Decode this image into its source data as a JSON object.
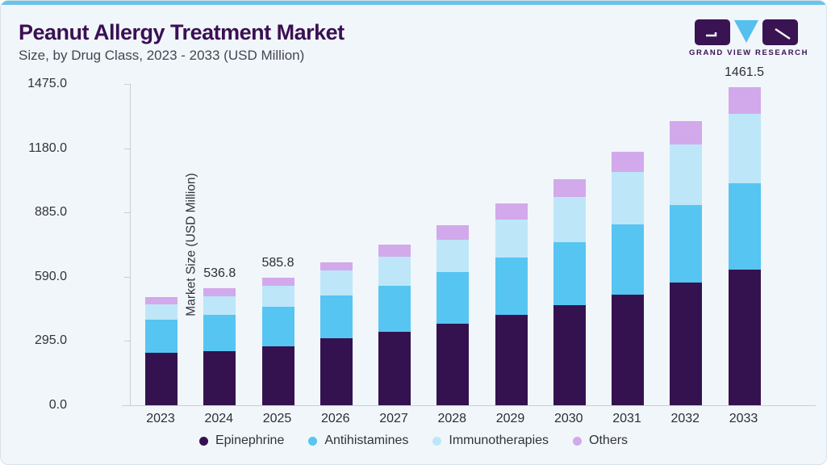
{
  "header": {
    "title": "Peanut Allergy Treatment Market",
    "subtitle": "Size, by Drug Class, 2023 - 2033 (USD Million)"
  },
  "logo": {
    "brand": "GRAND VIEW RESEARCH",
    "icon": "gvr-logo-icon",
    "colors": {
      "rect": "#3a1353",
      "triangle": "#55c0ed"
    }
  },
  "colors": {
    "accent_bar": "#68c3ea",
    "card_background": "#f1f6fa",
    "card_border": "#d8e2ea",
    "title_text": "#3a1053",
    "subtitle_text": "#454553",
    "axis_text": "#32323d",
    "axis_line": "#c9ced6",
    "value_label_text": "#2d2d38"
  },
  "chart_data": {
    "type": "bar",
    "stacked": true,
    "title": "Peanut Allergy Treatment Market Size, by Drug Class, 2023 - 2033 (USD Million)",
    "xlabel": "",
    "ylabel": "Market Size (USD Million)",
    "ylim": [
      0,
      1475
    ],
    "yticks": [
      0,
      295,
      590,
      885,
      1180,
      1475
    ],
    "ytick_labels": [
      "0.0",
      "295.0",
      "590.0",
      "885.0",
      "1180.0",
      "1475.0"
    ],
    "grid": false,
    "legend_position": "bottom",
    "categories": [
      "2023",
      "2024",
      "2025",
      "2026",
      "2027",
      "2028",
      "2029",
      "2030",
      "2031",
      "2032",
      "2033"
    ],
    "series": [
      {
        "name": "Epinephrine",
        "color": "#341250",
        "values": [
          240.5,
          249.7,
          271.8,
          307.3,
          337.2,
          373.9,
          415.5,
          460.7,
          509.5,
          564.7,
          624.1
        ]
      },
      {
        "name": "Antihistamines",
        "color": "#56c5f2",
        "values": [
          152.1,
          165.3,
          178.7,
          198.3,
          212.0,
          237.7,
          261.9,
          288.4,
          321.0,
          354.7,
          394.6
        ]
      },
      {
        "name": "Immunotherapies",
        "color": "#bde7f9",
        "values": [
          72.1,
          83.7,
          98.4,
          112.3,
          131.8,
          146.9,
          174.9,
          207.5,
          239.6,
          277.8,
          318.6
        ]
      },
      {
        "name": "Others",
        "color": "#d2a9eb",
        "values": [
          32.3,
          38.1,
          36.9,
          38.8,
          55.2,
          66.9,
          73.1,
          80.9,
          93.1,
          106.9,
          124.2
        ]
      }
    ],
    "totals": [
      497.0,
      536.8,
      585.8,
      656.7,
      736.2,
      825.4,
      925.4,
      1037.5,
      1163.2,
      1304.1,
      1461.5
    ],
    "bar_value_labels": [
      "",
      "536.8",
      "585.8",
      "",
      "",
      "",
      "",
      "",
      "",
      "",
      "1461.5"
    ]
  }
}
